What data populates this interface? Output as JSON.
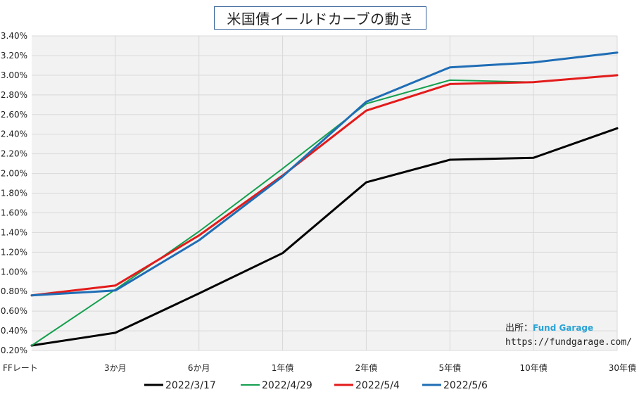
{
  "chart_data": {
    "type": "line",
    "title": "米国債イールドカーブの動き",
    "categories": [
      "FFレート",
      "3か月",
      "6か月",
      "1年債",
      "2年債",
      "5年債",
      "10年債",
      "30年債"
    ],
    "yticks": [
      "0.20%",
      "0.40%",
      "0.60%",
      "0.80%",
      "1.00%",
      "1.20%",
      "1.40%",
      "1.60%",
      "1.80%",
      "2.00%",
      "2.20%",
      "2.40%",
      "2.60%",
      "2.80%",
      "3.00%",
      "3.20%",
      "3.40%"
    ],
    "ylim": [
      0.2,
      3.4
    ],
    "grid": true,
    "legend": "bottom",
    "series": [
      {
        "name": "2022/3/17",
        "color": "#000000",
        "width": 3,
        "values": [
          0.25,
          0.38,
          0.78,
          1.19,
          1.91,
          2.14,
          2.16,
          2.46
        ]
      },
      {
        "name": "2022/4/29",
        "color": "#13a04f",
        "width": 2,
        "values": [
          0.25,
          0.82,
          1.41,
          2.05,
          2.71,
          2.95,
          2.93,
          3.0
        ]
      },
      {
        "name": "2022/5/4",
        "color": "#e31b1b",
        "width": 3,
        "values": [
          0.76,
          0.86,
          1.37,
          1.98,
          2.64,
          2.91,
          2.93,
          3.0
        ]
      },
      {
        "name": "2022/5/6",
        "color": "#1f6db5",
        "width": 3,
        "values": [
          0.76,
          0.81,
          1.32,
          1.97,
          2.73,
          3.08,
          3.13,
          3.23
        ]
      }
    ]
  },
  "source": {
    "label": "出所：",
    "brand": "Fund Garage",
    "url": "https://fundgarage.com/"
  }
}
